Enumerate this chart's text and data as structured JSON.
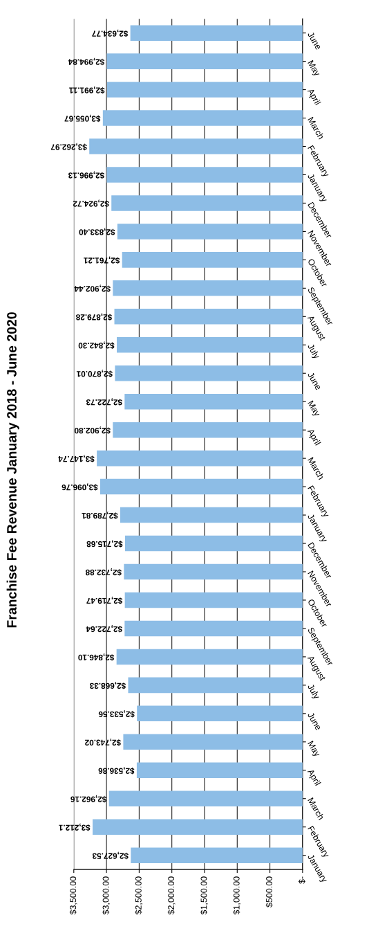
{
  "chart_data": {
    "type": "bar",
    "orientation": "horizontal",
    "title": "Franchise Fee Revenue January 2018 - June 2020",
    "categories": [
      "June",
      "May",
      "April",
      "March",
      "February",
      "January",
      "December",
      "November",
      "October",
      "September",
      "August",
      "July",
      "June",
      "May",
      "April",
      "March",
      "February",
      "January",
      "December",
      "November",
      "October",
      "September",
      "August",
      "July",
      "June",
      "May",
      "April",
      "March",
      "February",
      "January"
    ],
    "values": [
      2634.77,
      2994.84,
      2991.11,
      3055.67,
      3262.97,
      2996.13,
      2924.72,
      2833.4,
      2761.21,
      2902.44,
      2879.28,
      2842.3,
      2870.01,
      2722.73,
      2902.8,
      3147.74,
      3096.76,
      2789.81,
      2715.68,
      2732.88,
      2719.47,
      2722.64,
      2846.1,
      2668.33,
      2533.56,
      2743.02,
      2536.86,
      2962.16,
      3212.1,
      2627.53
    ],
    "value_labels": [
      "$2,634.77",
      "$2,994.84",
      "$2,991.11",
      "$3,055.67",
      "$3,262.97",
      "$2,996.13",
      "$2,924.72",
      "$2,833.40",
      "$2,761.21",
      "$2,902.44",
      "$2,879.28",
      "$2,842.30",
      "$2,870.01",
      "$2,722.73",
      "$2,902.80",
      "$3,147.74",
      "$3,096.76",
      "$2,789.81",
      "$2,715.68",
      "$2,732.88",
      "$2,719.47",
      "$2,722.64",
      "$2,846.10",
      "$2,668.33",
      "$2,533.56",
      "$2,743.02",
      "$2,536.86",
      "$2,962.16",
      "$3,212.1",
      "$2,627.53"
    ],
    "color": "#8dbde6",
    "xlim": [
      3500,
      0
    ],
    "xticks": [
      {
        "value": 3500,
        "label": "$3,500.00"
      },
      {
        "value": 3000,
        "label": "$3,000.00"
      },
      {
        "value": 2500,
        "label": "$2,500.00"
      },
      {
        "value": 2000,
        "label": "$2,000.00"
      },
      {
        "value": 1500,
        "label": "$1,500.00"
      },
      {
        "value": 1000,
        "label": "$1,000.00"
      },
      {
        "value": 500,
        "label": "$500.00"
      },
      {
        "value": 0,
        "label": "$-"
      }
    ],
    "grid": "x"
  }
}
